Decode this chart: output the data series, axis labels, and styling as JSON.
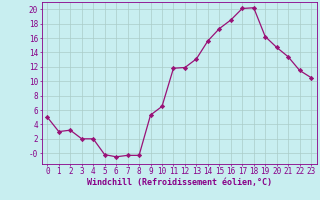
{
  "x": [
    0,
    1,
    2,
    3,
    4,
    5,
    6,
    7,
    8,
    9,
    10,
    11,
    12,
    13,
    14,
    15,
    16,
    17,
    18,
    19,
    20,
    21,
    22,
    23
  ],
  "y": [
    5.0,
    3.0,
    3.2,
    2.0,
    2.0,
    -0.2,
    -0.5,
    -0.3,
    -0.3,
    5.3,
    6.5,
    11.8,
    11.9,
    13.1,
    15.6,
    17.3,
    18.5,
    20.1,
    20.2,
    16.2,
    14.7,
    13.4,
    11.5,
    10.5
  ],
  "line_color": "#991177",
  "marker": "D",
  "marker_size": 2.2,
  "background_color": "#c8eef0",
  "grid_color": "#aaccc8",
  "xlabel": "Windchill (Refroidissement éolien,°C)",
  "ylim": [
    -1.5,
    21
  ],
  "xlim": [
    -0.5,
    23.5
  ],
  "yticks": [
    0,
    2,
    4,
    6,
    8,
    10,
    12,
    14,
    16,
    18,
    20
  ],
  "ytick_labels": [
    "-0",
    "2",
    "4",
    "6",
    "8",
    "10",
    "12",
    "14",
    "16",
    "18",
    "20"
  ],
  "xticks": [
    0,
    1,
    2,
    3,
    4,
    5,
    6,
    7,
    8,
    9,
    10,
    11,
    12,
    13,
    14,
    15,
    16,
    17,
    18,
    19,
    20,
    21,
    22,
    23
  ],
  "font_color": "#880088",
  "tick_fontsize": 5.5,
  "xlabel_fontsize": 6.0
}
